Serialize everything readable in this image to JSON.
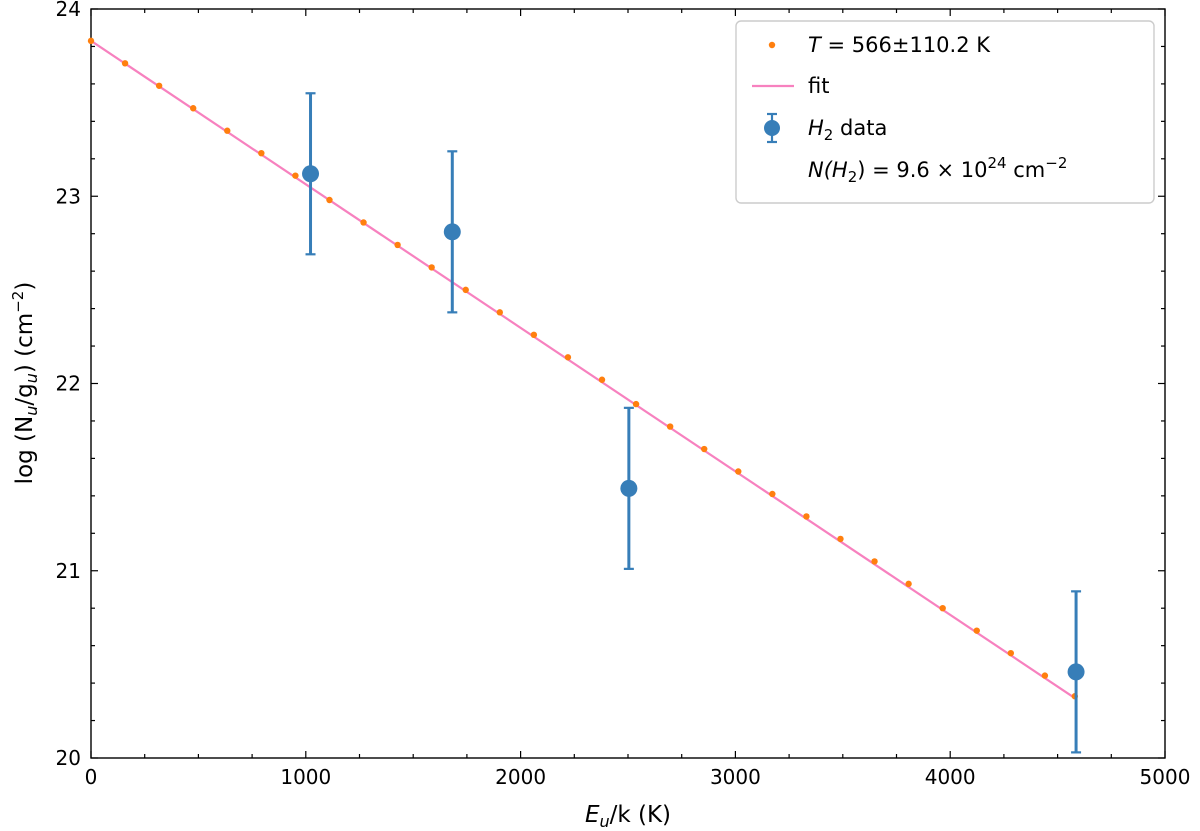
{
  "chart_data": {
    "type": "scatter",
    "title": "",
    "xlabel": {
      "main": "E",
      "sub": "u",
      "rest": "/k (K)"
    },
    "ylabel": {
      "prefix": "log (N",
      "sub1": "u",
      "mid": "/g",
      "sub2": "u",
      "suffix": ") (cm",
      "sup": "−2",
      "end": ")"
    },
    "xlim": [
      0,
      5000
    ],
    "ylim": [
      20,
      24
    ],
    "xticks": [
      0,
      1000,
      2000,
      3000,
      4000,
      5000
    ],
    "yticks": [
      20,
      21,
      22,
      23,
      24
    ],
    "xtick_labels": [
      "0",
      "1000",
      "2000",
      "3000",
      "4000",
      "5000"
    ],
    "ytick_labels": [
      "20",
      "21",
      "22",
      "23",
      "24"
    ],
    "grid": false,
    "legend_position": "top-right",
    "series": [
      {
        "name": "T = 566±110.2 K",
        "kind": "model-points",
        "color": "#ff7f0e",
        "x": [
          0,
          158.6,
          317.2,
          475.8,
          634.4,
          793.0,
          951.6,
          1110.2,
          1268.8,
          1427.4,
          1586.0,
          1744.6,
          1903.2,
          2061.8,
          2220.4,
          2379.0,
          2537.6,
          2696.2,
          2854.8,
          3013.4,
          3172.0,
          3330.6,
          3489.2,
          3647.8,
          3806.4,
          3965.0,
          4123.6,
          4282.2,
          4440.8,
          4580
        ],
        "y": [
          23.83,
          23.71,
          23.59,
          23.47,
          23.35,
          23.23,
          23.11,
          22.98,
          22.86,
          22.74,
          22.62,
          22.5,
          22.38,
          22.26,
          22.14,
          22.02,
          21.89,
          21.77,
          21.65,
          21.53,
          21.41,
          21.29,
          21.17,
          21.05,
          20.93,
          20.8,
          20.68,
          20.56,
          20.44,
          20.33
        ]
      },
      {
        "name": "fit",
        "kind": "line",
        "color": "#f781bf",
        "x": [
          0,
          4580
        ],
        "y": [
          23.83,
          20.32
        ]
      },
      {
        "name": "H2 data",
        "kind": "errorbar",
        "color": "#377eb8",
        "x": [
          1022,
          1682,
          2504,
          4586
        ],
        "y": [
          23.12,
          22.81,
          21.44,
          20.46
        ],
        "yerr": [
          0.43,
          0.43,
          0.43,
          0.43
        ]
      }
    ],
    "legend": [
      {
        "marker": "dot-orange",
        "pre": "T",
        "text": " = 566±110.2 K"
      },
      {
        "marker": "line-pink",
        "text": "fit"
      },
      {
        "marker": "errorbar-blue",
        "pre": "H",
        "sub": "2",
        "text": " data"
      },
      {
        "marker": "none",
        "pre": "N(H",
        "sub": "2",
        "mid": ") = 9.6 × 10",
        "sup": "24",
        "text": " cm",
        "sup2": "−2"
      }
    ]
  }
}
